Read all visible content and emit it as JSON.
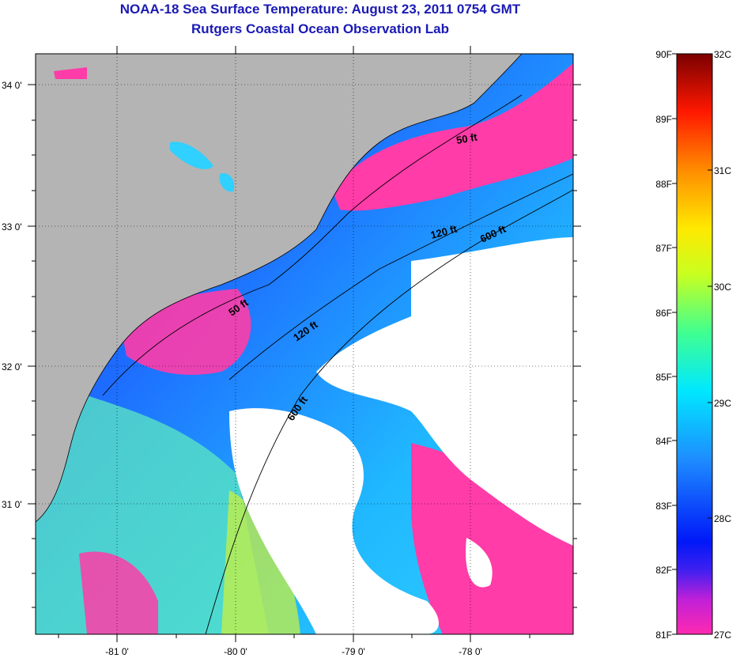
{
  "header": {
    "title": "NOAA-18 Sea Surface Temperature:  August 23, 2011 0754 GMT",
    "subtitle": "Rutgers Coastal Ocean Observation Lab"
  },
  "map": {
    "lat_labels": [
      "34 0'",
      "33 0'",
      "32 0'",
      "31 0'"
    ],
    "lon_labels": [
      "-81 0'",
      "-80 0'",
      "-79 0'",
      "-78 0'"
    ],
    "contours": [
      "50 ft",
      "50 ft",
      "120 ft",
      "120 ft",
      "600 ft",
      "600 ft"
    ],
    "colors": {
      "land": "#b4b4b4",
      "cloud": "#ffffff",
      "warm_patch": "#ff3ca8"
    }
  },
  "colorbar": {
    "f_labels": [
      "90F",
      "89F",
      "88F",
      "87F",
      "86F",
      "85F",
      "84F",
      "83F",
      "82F",
      "81F"
    ],
    "c_labels": [
      "32C",
      "31C",
      "30C",
      "29C",
      "28C",
      "27C"
    ],
    "stops": [
      "#ff29b0",
      "#8020e8",
      "#0018f8",
      "#1e8cff",
      "#00e8ff",
      "#40ff90",
      "#c8ff20",
      "#ffe800",
      "#ff8c00",
      "#ff1800",
      "#7a0000"
    ]
  }
}
